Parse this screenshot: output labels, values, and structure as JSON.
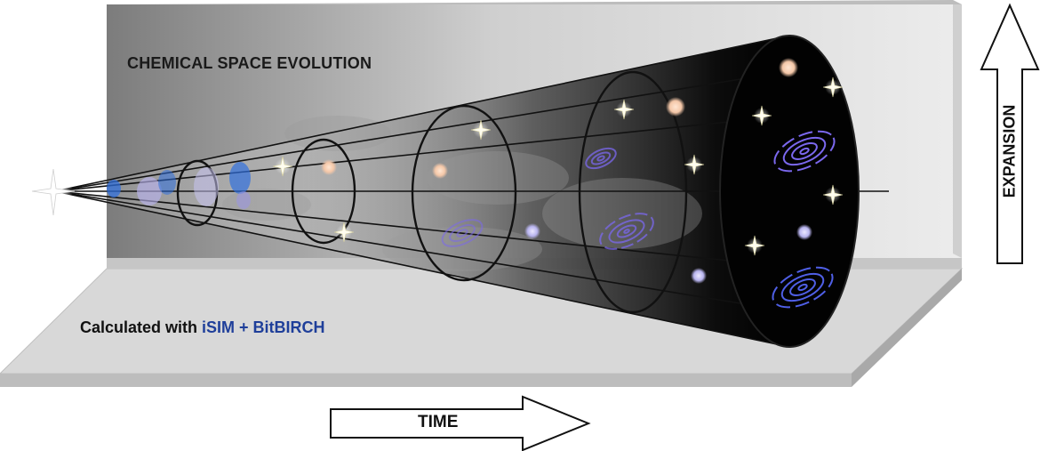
{
  "diagram": {
    "title": "CHEMICAL SPACE EVOLUTION",
    "subtitle_prefix": "Calculated with ",
    "subtitle_highlight": "iSIM + BitBIRCH",
    "time_label": "TIME",
    "expansion_label": "EXPANSION"
  },
  "colors": {
    "wall_dark": "#7a7a7a",
    "wall_light": "#e6e6e6",
    "floor": "#d9d9d9",
    "cone_dark": "#0b0b0b",
    "highlight_blue": "#1f3f9a",
    "galaxy_purple": "#7b68ee",
    "star": "#fffde8"
  }
}
